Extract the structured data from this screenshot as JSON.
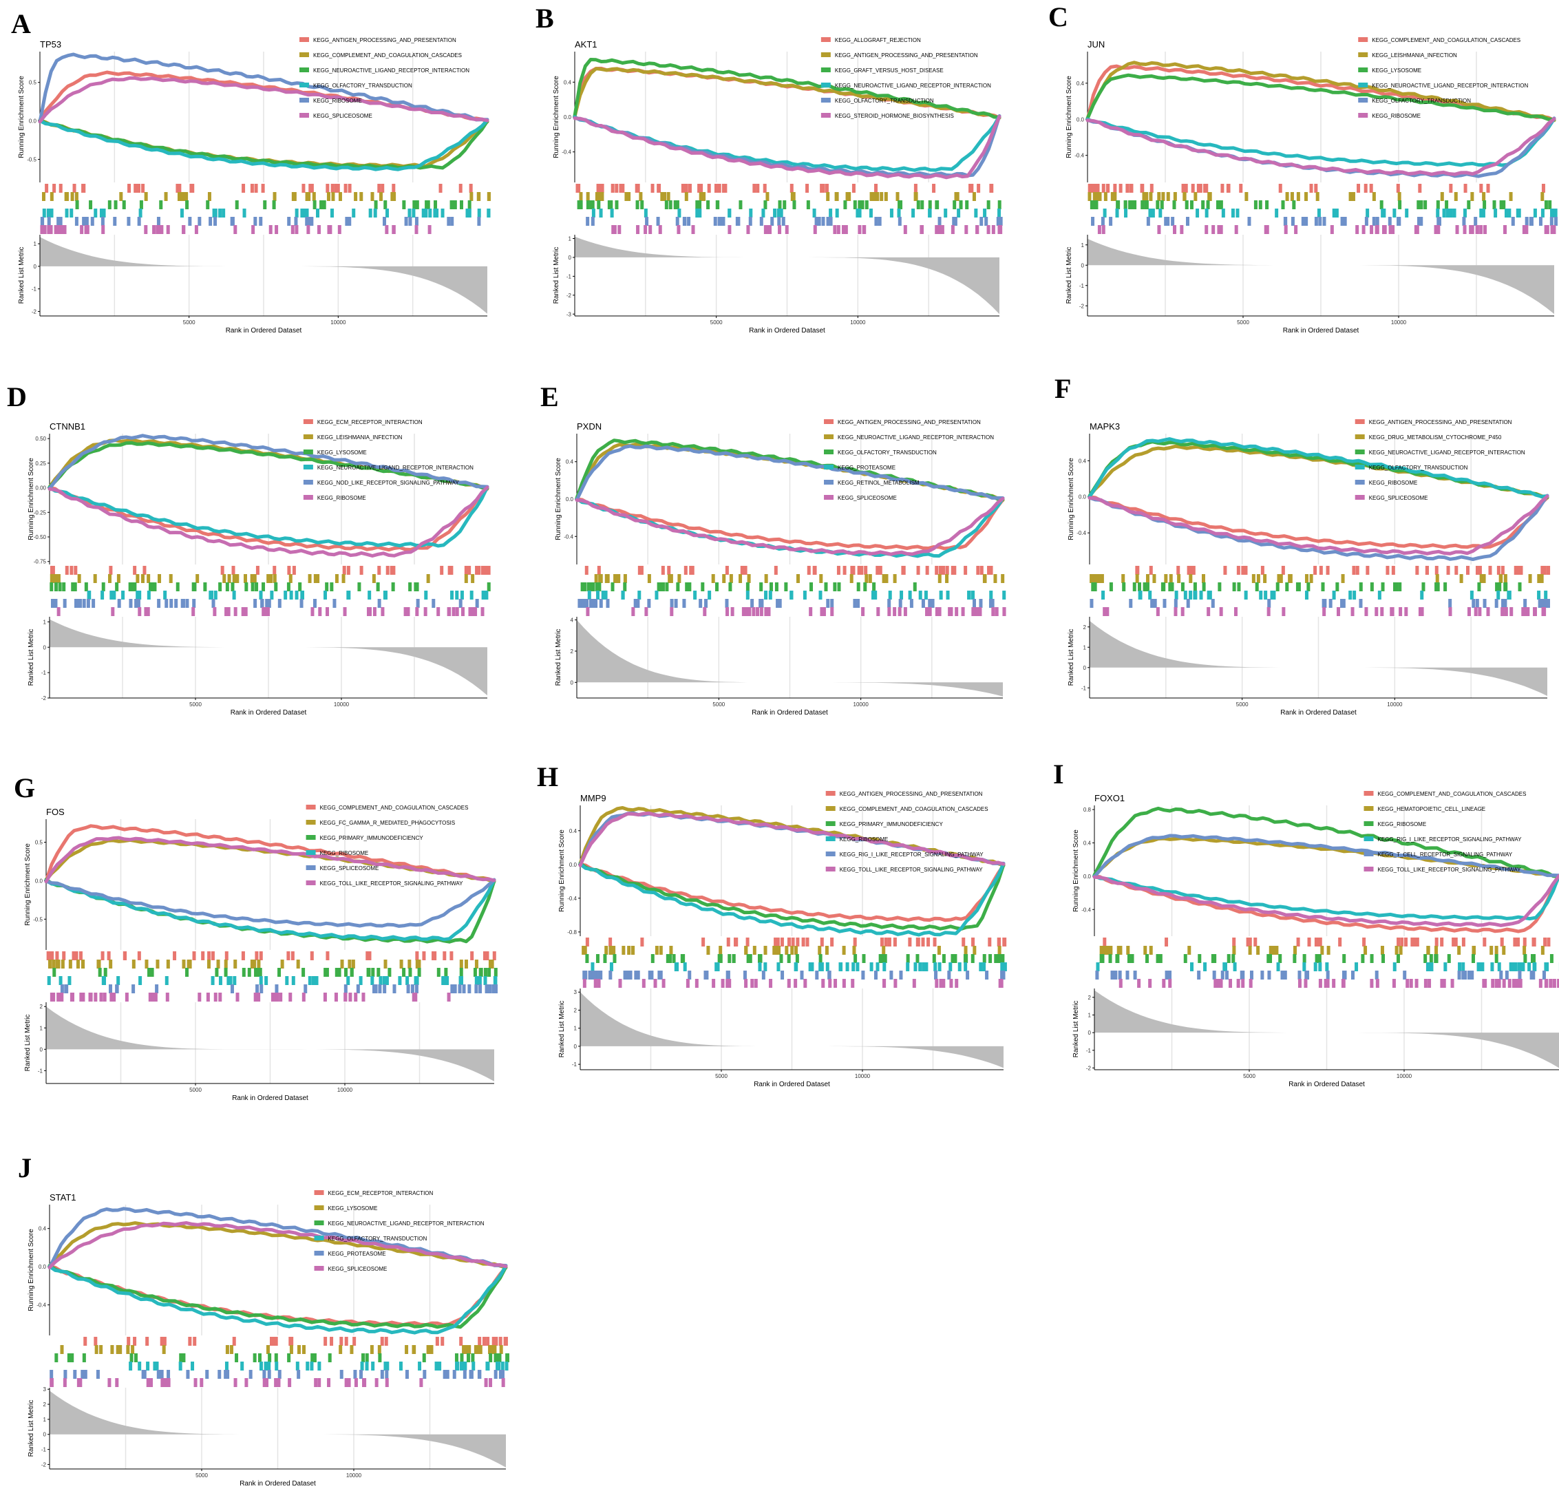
{
  "figure": {
    "x_axis_title": "Rank in Ordered Dataset",
    "y_axis_title_top": "Running Enrichment Score",
    "y_axis_title_bottom": "Ranked List Metric",
    "colors": [
      "#E8766F",
      "#B49D2C",
      "#3DAE48",
      "#27B8BE",
      "#6D90C9",
      "#C66DB1"
    ]
  },
  "chart_data": [
    {
      "panel": "A",
      "gene": "TP53",
      "type": "line",
      "n": 15000,
      "x_ticks": [
        5000,
        10000
      ],
      "es_ticks": [
        "0.5",
        "0.0",
        "-0.5"
      ],
      "es_tick_values": [
        0.5,
        0.0,
        -0.5
      ],
      "es_range": [
        -0.8,
        0.9
      ],
      "metric_ticks": [
        "1",
        "0",
        "-1",
        "-2"
      ],
      "metric_tick_values": [
        1,
        0,
        -1,
        -2
      ],
      "metric_range": [
        -2.2,
        1.4
      ],
      "metric_start": 1.3,
      "metric_end": -2.1,
      "series": [
        {
          "name": "KEGG_ANTIGEN_PROCESSING_AND_PRESENTATION",
          "peak": 0.62,
          "peak_pos": 0.16
        },
        {
          "name": "KEGG_COMPLEMENT_AND_COAGULATION_CASCADES",
          "peak": -0.58,
          "peak_pos": 0.86
        },
        {
          "name": "KEGG_NEUROACTIVE_LIGAND_RECEPTOR_INTERACTION",
          "peak": -0.6,
          "peak_pos": 0.9
        },
        {
          "name": "KEGG_OLFACTORY_TRANSDUCTION",
          "peak": -0.62,
          "peak_pos": 0.82
        },
        {
          "name": "KEGG_RIBOSOME",
          "peak": 0.85,
          "peak_pos": 0.06
        },
        {
          "name": "KEGG_SPLICEOSOME",
          "peak": 0.55,
          "peak_pos": 0.22
        }
      ]
    },
    {
      "panel": "B",
      "gene": "AKT1",
      "type": "line",
      "n": 15000,
      "x_ticks": [
        5000,
        10000
      ],
      "es_ticks": [
        "0.4",
        "0.0",
        "-0.4"
      ],
      "es_tick_values": [
        0.4,
        0.0,
        -0.4
      ],
      "es_range": [
        -0.75,
        0.75
      ],
      "metric_ticks": [
        "1",
        "0",
        "-1",
        "-2",
        "-3"
      ],
      "metric_tick_values": [
        1,
        0,
        -1,
        -2,
        -3
      ],
      "metric_range": [
        -3.1,
        1.2
      ],
      "metric_start": 1.1,
      "metric_end": -3.0,
      "series": [
        {
          "name": "KEGG_ALLOGRAFT_REJECTION",
          "peak": 0.55,
          "peak_pos": 0.05
        },
        {
          "name": "KEGG_ANTIGEN_PROCESSING_AND_PRESENTATION",
          "peak": 0.55,
          "peak_pos": 0.06
        },
        {
          "name": "KEGG_GRAFT_VERSUS_HOST_DISEASE",
          "peak": 0.65,
          "peak_pos": 0.04
        },
        {
          "name": "KEGG_NEUROACTIVE_LIGAND_RECEPTOR_INTERACTION",
          "peak": -0.6,
          "peak_pos": 0.88
        },
        {
          "name": "KEGG_OLFACTORY_TRANSDUCTION",
          "peak": -0.66,
          "peak_pos": 0.94
        },
        {
          "name": "KEGG_STEROID_HORMONE_BIOSYNTHESIS",
          "peak": -0.68,
          "peak_pos": 0.92
        }
      ]
    },
    {
      "panel": "C",
      "gene": "JUN",
      "type": "line",
      "n": 15000,
      "x_ticks": [
        5000,
        10000
      ],
      "es_ticks": [
        "0.4",
        "0.0",
        "-0.4"
      ],
      "es_tick_values": [
        0.4,
        0.0,
        -0.4
      ],
      "es_range": [
        -0.7,
        0.75
      ],
      "metric_ticks": [
        "1",
        "0",
        "-1",
        "-2"
      ],
      "metric_tick_values": [
        1,
        0,
        -1,
        -2
      ],
      "metric_range": [
        -2.5,
        1.5
      ],
      "metric_start": 1.3,
      "metric_end": -2.4,
      "series": [
        {
          "name": "KEGG_COMPLEMENT_AND_COAGULATION_CASCADES",
          "peak": 0.58,
          "peak_pos": 0.06
        },
        {
          "name": "KEGG_LEISHMANIA_INFECTION",
          "peak": 0.62,
          "peak_pos": 0.11
        },
        {
          "name": "KEGG_LYSOSOME",
          "peak": 0.48,
          "peak_pos": 0.08
        },
        {
          "name": "KEGG_NEUROACTIVE_LIGAND_RECEPTOR_INTERACTION",
          "peak": -0.5,
          "peak_pos": 0.9
        },
        {
          "name": "KEGG_OLFACTORY_TRANSDUCTION",
          "peak": -0.62,
          "peak_pos": 0.86
        },
        {
          "name": "KEGG_RIBOSOME",
          "peak": -0.6,
          "peak_pos": 0.82
        }
      ]
    },
    {
      "panel": "D",
      "gene": "CTNNB1",
      "type": "line",
      "n": 15000,
      "x_ticks": [
        5000,
        10000
      ],
      "es_ticks": [
        "0.50",
        "0.25",
        "0.00",
        "-0.25",
        "-0.50",
        "-0.75"
      ],
      "es_tick_values": [
        0.5,
        0.25,
        0.0,
        -0.25,
        -0.5,
        -0.75
      ],
      "es_range": [
        -0.78,
        0.55
      ],
      "metric_ticks": [
        "1",
        "0",
        "-1",
        "-2"
      ],
      "metric_tick_values": [
        1,
        0,
        -1,
        -2
      ],
      "metric_range": [
        -2.0,
        1.2
      ],
      "metric_start": 1.1,
      "metric_end": -1.9,
      "series": [
        {
          "name": "KEGG_ECM_RECEPTOR_INTERACTION",
          "peak": -0.62,
          "peak_pos": 0.85
        },
        {
          "name": "KEGG_LEISHMANIA_INFECTION",
          "peak": 0.48,
          "peak_pos": 0.17
        },
        {
          "name": "KEGG_LYSOSOME",
          "peak": 0.45,
          "peak_pos": 0.2
        },
        {
          "name": "KEGG_NEUROACTIVE_LIGAND_RECEPTOR_INTERACTION",
          "peak": -0.58,
          "peak_pos": 0.9
        },
        {
          "name": "KEGG_NOD_LIKE_RECEPTOR_SIGNALING_PATHWAY",
          "peak": 0.52,
          "peak_pos": 0.22
        },
        {
          "name": "KEGG_RIBOSOME",
          "peak": -0.68,
          "peak_pos": 0.8
        }
      ]
    },
    {
      "panel": "E",
      "gene": "PXDN",
      "type": "line",
      "n": 15000,
      "x_ticks": [
        5000,
        10000
      ],
      "es_ticks": [
        "0.4",
        "0.0",
        "-0.4"
      ],
      "es_tick_values": [
        0.4,
        0.0,
        -0.4
      ],
      "es_range": [
        -0.7,
        0.7
      ],
      "metric_ticks": [
        "4",
        "2",
        "0"
      ],
      "metric_tick_values": [
        4,
        2,
        0
      ],
      "metric_range": [
        -1.0,
        4.2
      ],
      "metric_start": 4.0,
      "metric_end": -0.9,
      "series": [
        {
          "name": "KEGG_ANTIGEN_PROCESSING_AND_PRESENTATION",
          "peak": -0.52,
          "peak_pos": 0.9
        },
        {
          "name": "KEGG_NEUROACTIVE_LIGAND_RECEPTOR_INTERACTION",
          "peak": 0.58,
          "peak_pos": 0.12
        },
        {
          "name": "KEGG_OLFACTORY_TRANSDUCTION",
          "peak": 0.62,
          "peak_pos": 0.1
        },
        {
          "name": "KEGG_PROTEASOME",
          "peak": -0.6,
          "peak_pos": 0.85
        },
        {
          "name": "KEGG_RETINOL_METABOLISM",
          "peak": 0.56,
          "peak_pos": 0.14
        },
        {
          "name": "KEGG_SPLICEOSOME",
          "peak": -0.58,
          "peak_pos": 0.8
        }
      ]
    },
    {
      "panel": "F",
      "gene": "MAPK3",
      "type": "line",
      "n": 15000,
      "x_ticks": [
        5000,
        10000
      ],
      "es_ticks": [
        "0.4",
        "0.0",
        "-0.4"
      ],
      "es_tick_values": [
        0.4,
        0.0,
        -0.4
      ],
      "es_range": [
        -0.75,
        0.7
      ],
      "metric_ticks": [
        "2",
        "1",
        "0",
        "-1"
      ],
      "metric_tick_values": [
        2,
        1,
        0,
        -1
      ],
      "metric_range": [
        -1.5,
        2.5
      ],
      "metric_start": 2.3,
      "metric_end": -1.4,
      "series": [
        {
          "name": "KEGG_ANTIGEN_PROCESSING_AND_PRESENTATION",
          "peak": -0.55,
          "peak_pos": 0.88
        },
        {
          "name": "KEGG_DRUG_METABOLISM_CYTOCHROME_P450",
          "peak": 0.55,
          "peak_pos": 0.2
        },
        {
          "name": "KEGG_NEUROACTIVE_LIGAND_RECEPTOR_INTERACTION",
          "peak": 0.6,
          "peak_pos": 0.15
        },
        {
          "name": "KEGG_OLFACTORY_TRANSDUCTION",
          "peak": 0.63,
          "peak_pos": 0.17
        },
        {
          "name": "KEGG_RIBOSOME",
          "peak": -0.68,
          "peak_pos": 0.86
        },
        {
          "name": "KEGG_SPLICEOSOME",
          "peak": -0.62,
          "peak_pos": 0.82
        }
      ]
    },
    {
      "panel": "G",
      "gene": "FOS",
      "type": "line",
      "n": 15000,
      "x_ticks": [
        5000,
        10000
      ],
      "es_ticks": [
        "0.5",
        "0.0",
        "-0.5"
      ],
      "es_tick_values": [
        0.5,
        0.0,
        -0.5
      ],
      "es_range": [
        -0.9,
        0.8
      ],
      "metric_ticks": [
        "2",
        "1",
        "0",
        "-1"
      ],
      "metric_tick_values": [
        2,
        1,
        0,
        -1
      ],
      "metric_range": [
        -1.6,
        2.2
      ],
      "metric_start": 2.0,
      "metric_end": -1.5,
      "series": [
        {
          "name": "KEGG_COMPLEMENT_AND_COAGULATION_CASCADES",
          "peak": 0.7,
          "peak_pos": 0.1
        },
        {
          "name": "KEGG_FC_GAMMA_R_MEDIATED_PHAGOCYTOSIS",
          "peak": 0.52,
          "peak_pos": 0.17
        },
        {
          "name": "KEGG_PRIMARY_IMMUNODEFICIENCY",
          "peak": -0.78,
          "peak_pos": 0.94
        },
        {
          "name": "KEGG_RIBOSOME",
          "peak": -0.75,
          "peak_pos": 0.9
        },
        {
          "name": "KEGG_SPLICEOSOME",
          "peak": -0.58,
          "peak_pos": 0.82
        },
        {
          "name": "KEGG_TOLL_LIKE_RECEPTOR_SIGNALING_PATHWAY",
          "peak": 0.55,
          "peak_pos": 0.15
        }
      ]
    },
    {
      "panel": "H",
      "gene": "MMP9",
      "type": "line",
      "n": 15000,
      "x_ticks": [
        5000,
        10000
      ],
      "es_ticks": [
        "0.4",
        "0.0",
        "-0.4",
        "-0.8"
      ],
      "es_tick_values": [
        0.4,
        0.0,
        -0.4,
        -0.8
      ],
      "es_range": [
        -0.85,
        0.7
      ],
      "metric_ticks": [
        "3",
        "2",
        "1",
        "0",
        "-1"
      ],
      "metric_tick_values": [
        3,
        2,
        1,
        0,
        -1
      ],
      "metric_range": [
        -1.3,
        3.2
      ],
      "metric_start": 3.0,
      "metric_end": -1.2,
      "series": [
        {
          "name": "KEGG_ANTIGEN_PROCESSING_AND_PRESENTATION",
          "peak": -0.65,
          "peak_pos": 0.9
        },
        {
          "name": "KEGG_COMPLEMENT_AND_COAGULATION_CASCADES",
          "peak": 0.66,
          "peak_pos": 0.1
        },
        {
          "name": "KEGG_PRIMARY_IMMUNODEFICIENCY",
          "peak": -0.75,
          "peak_pos": 0.93
        },
        {
          "name": "KEGG_RIBOSOME",
          "peak": -0.82,
          "peak_pos": 0.88
        },
        {
          "name": "KEGG_RIG_I_LIKE_RECEPTOR_SIGNALING_PATHWAY",
          "peak": 0.6,
          "peak_pos": 0.12
        },
        {
          "name": "KEGG_TOLL_LIKE_RECEPTOR_SIGNALING_PATHWAY",
          "peak": 0.6,
          "peak_pos": 0.14
        }
      ]
    },
    {
      "panel": "I",
      "gene": "FOXO1",
      "type": "line",
      "n": 15000,
      "x_ticks": [
        5000,
        10000
      ],
      "es_ticks": [
        "0.8",
        "0.4",
        "0.0",
        "-0.4"
      ],
      "es_tick_values": [
        0.8,
        0.4,
        0.0,
        -0.4
      ],
      "es_range": [
        -0.72,
        0.85
      ],
      "metric_ticks": [
        "2",
        "1",
        "0",
        "-1",
        "-2"
      ],
      "metric_tick_values": [
        2,
        1,
        0,
        -1,
        -2
      ],
      "metric_range": [
        -2.1,
        2.5
      ],
      "metric_start": 2.4,
      "metric_end": -2.0,
      "series": [
        {
          "name": "KEGG_COMPLEMENT_AND_COAGULATION_CASCADES",
          "peak": -0.65,
          "peak_pos": 0.93
        },
        {
          "name": "KEGG_HEMATOPOIETIC_CELL_LINEAGE",
          "peak": 0.45,
          "peak_pos": 0.17
        },
        {
          "name": "KEGG_RIBOSOME",
          "peak": 0.8,
          "peak_pos": 0.15
        },
        {
          "name": "KEGG_RIG_I_LIKE_RECEPTOR_SIGNALING_PATHWAY",
          "peak": -0.5,
          "peak_pos": 0.95
        },
        {
          "name": "KEGG_T_CELL_RECEPTOR_SIGNALING_PATHWAY",
          "peak": 0.48,
          "peak_pos": 0.18
        },
        {
          "name": "KEGG_TOLL_LIKE_RECEPTOR_SIGNALING_PATHWAY",
          "peak": -0.58,
          "peak_pos": 0.9
        }
      ]
    },
    {
      "panel": "J",
      "gene": "STAT1",
      "type": "line",
      "n": 15000,
      "x_ticks": [
        5000,
        10000
      ],
      "es_ticks": [
        "0.4",
        "0.0",
        "-0.4"
      ],
      "es_tick_values": [
        0.4,
        0.0,
        -0.4
      ],
      "es_range": [
        -0.72,
        0.65
      ],
      "metric_ticks": [
        "3",
        "2",
        "1",
        "0",
        "-1",
        "-2"
      ],
      "metric_tick_values": [
        3,
        2,
        1,
        0,
        -1,
        -2
      ],
      "metric_range": [
        -2.3,
        3.1
      ],
      "metric_start": 2.9,
      "metric_end": -2.2,
      "series": [
        {
          "name": "KEGG_ECM_RECEPTOR_INTERACTION",
          "peak": -0.6,
          "peak_pos": 0.88
        },
        {
          "name": "KEGG_LYSOSOME",
          "peak": 0.45,
          "peak_pos": 0.18
        },
        {
          "name": "KEGG_NEUROACTIVE_LIGAND_RECEPTOR_INTERACTION",
          "peak": -0.62,
          "peak_pos": 0.9
        },
        {
          "name": "KEGG_OLFACTORY_TRANSDUCTION",
          "peak": -0.68,
          "peak_pos": 0.86
        },
        {
          "name": "KEGG_PROTEASOME",
          "peak": 0.6,
          "peak_pos": 0.15
        },
        {
          "name": "KEGG_SPLICEOSOME",
          "peak": 0.45,
          "peak_pos": 0.3
        }
      ]
    }
  ]
}
